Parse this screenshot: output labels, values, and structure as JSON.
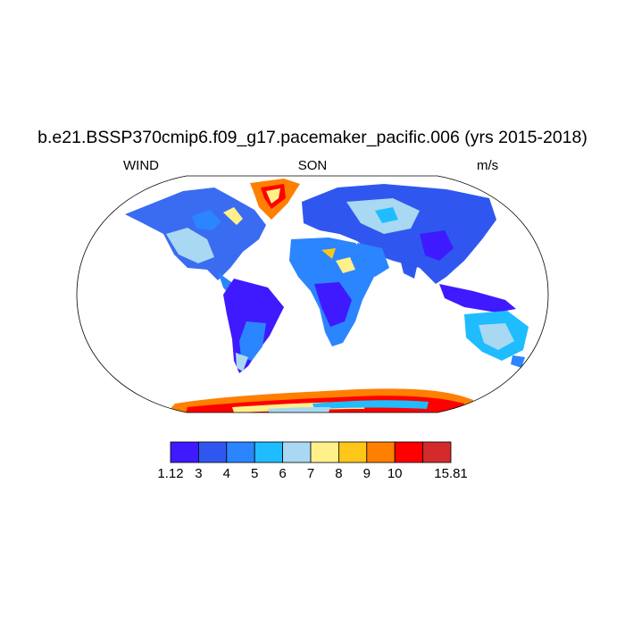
{
  "title": "b.e21.BSSP370cmip6.f09_g17.pacemaker_pacific.006 (yrs 2015-2018)",
  "left_string": "WIND",
  "center_string": "SON",
  "right_string": "m/s",
  "colorbar": {
    "colors": [
      "#3f1aff",
      "#2f57f0",
      "#2a85ff",
      "#1fbcff",
      "#a9d8f3",
      "#fff08a",
      "#ffc61a",
      "#ff7f00",
      "#ff0000",
      "#d42a2a"
    ],
    "labels": [
      "1.12",
      "3",
      "4",
      "5",
      "6",
      "7",
      "8",
      "9",
      "10",
      "15.81"
    ]
  }
}
